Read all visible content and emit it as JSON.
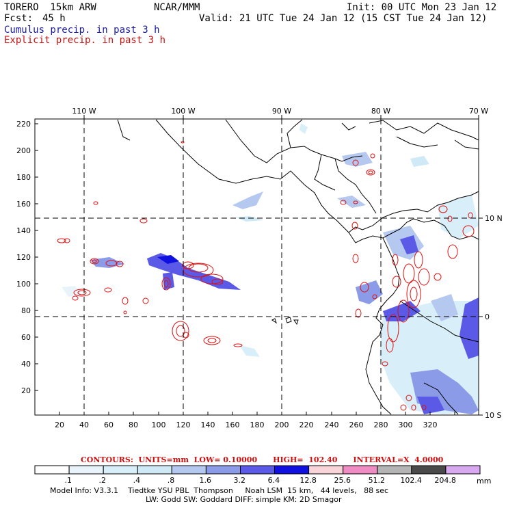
{
  "header": {
    "model": "TORERO  15km ARW",
    "org": "NCAR/MMM",
    "init": "Init: 00 UTC Mon 23 Jan 12",
    "fcst_label": "Fcst:",
    "fcst_value": "45 h",
    "valid": "Valid: 21 UTC Tue 24 Jan 12 (15 CST Tue 24 Jan 12)",
    "legend_cumulus": "Cumulus precip. in past 3 h",
    "legend_explicit": "Explicit precip. in past 3 h"
  },
  "colors": {
    "cumulus_text": "#1a1aa0",
    "explicit_text": "#cc1111",
    "contour": "#dd1111",
    "land": "#000000"
  },
  "map": {
    "top_longitudes": [
      "110 W",
      "100 W",
      "90 W",
      "80 W",
      "70 W"
    ],
    "right_latitudes": [
      "10 N",
      "0",
      "10 S"
    ],
    "x_ticks": [
      "20",
      "40",
      "60",
      "80",
      "100",
      "120",
      "140",
      "160",
      "180",
      "200",
      "220",
      "240",
      "260",
      "280",
      "300",
      "320"
    ],
    "y_ticks": [
      "220",
      "200",
      "180",
      "160",
      "140",
      "120",
      "100",
      "80",
      "60",
      "40",
      "20"
    ]
  },
  "colorbar": {
    "labels": [
      ".1",
      ".2",
      ".4",
      ".8",
      "1.6",
      "3.2",
      "6.4",
      "12.8",
      "25.6",
      "51.2",
      "102.4",
      "204.8"
    ],
    "unit": "mm",
    "colors": [
      "#ffffff",
      "#e8f4fa",
      "#d8eef8",
      "#cfe9f6",
      "#b4c8f0",
      "#8c9be8",
      "#5a5ae6",
      "#1010e0",
      "#f8d4d8",
      "#f08cc4",
      "#b4b4b4",
      "#4a4a4a",
      "#d8a8f0"
    ]
  },
  "contours_line": "CONTOURS:  UNITS=mm  LOW= 0.10000      HIGH=  102.40      INTERVAL=X  4.0000",
  "footer": {
    "line1": "Model Info: V3.3.1    Tiedtke YSU PBL  Thompson     Noah LSM  15 km,   44 levels,   88 sec",
    "line2": "LW: Godd SW: Goddard DIFF: simple KM: 2D Smagor"
  }
}
